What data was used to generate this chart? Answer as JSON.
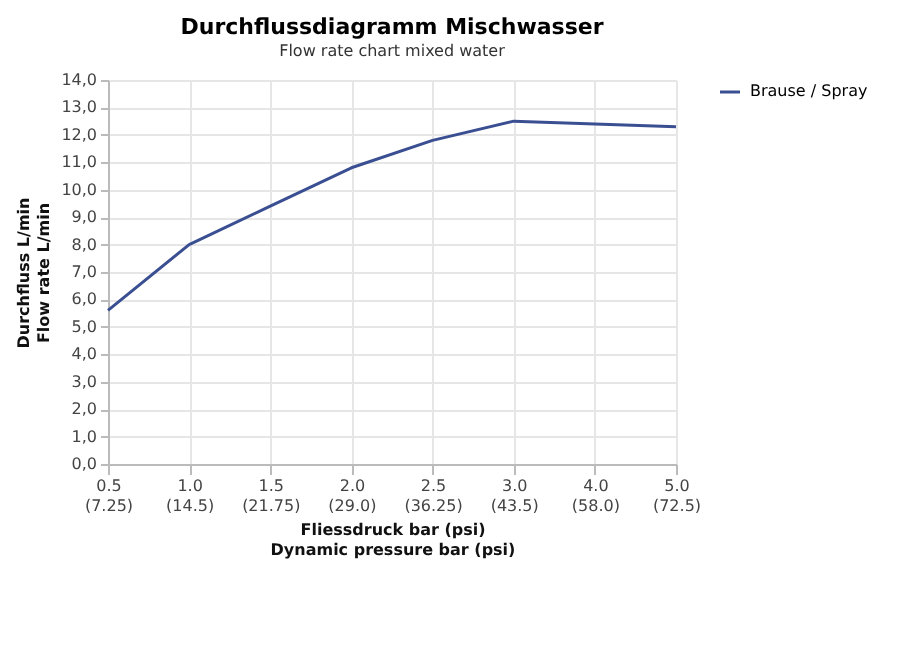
{
  "chart_data": {
    "type": "line",
    "title": "Durchflussdiagramm Mischwasser",
    "subtitle": "Flow rate chart mixed water",
    "xlabel": "Fliessdruck bar (psi)\nDynamic pressure bar (psi)",
    "ylabel": "Durchfluss L/min\nFlow rate L/min",
    "categories": [
      "0.5\n(7.25)",
      "1.0\n(14.5)",
      "1.5\n(21.75)",
      "2.0\n(29.0)",
      "2.5\n(36.25)",
      "3.0\n(43.5)",
      "4.0\n(58.0)",
      "5.0\n(72.5)"
    ],
    "series": [
      {
        "name": "Brause / Spray",
        "color": "#3a4e92",
        "values": [
          5.6,
          8.0,
          9.4,
          10.8,
          11.8,
          12.5,
          12.4,
          12.3
        ]
      }
    ],
    "ylim": [
      0,
      14
    ],
    "yticks": [
      {
        "value": 0,
        "label": "0,0"
      },
      {
        "value": 1,
        "label": "1,0"
      },
      {
        "value": 2,
        "label": "2,0"
      },
      {
        "value": 3,
        "label": "3,0"
      },
      {
        "value": 4,
        "label": "4,0"
      },
      {
        "value": 5,
        "label": "5,0"
      },
      {
        "value": 6,
        "label": "6,0"
      },
      {
        "value": 7,
        "label": "7,0"
      },
      {
        "value": 8,
        "label": "8,0"
      },
      {
        "value": 9,
        "label": "9,0"
      },
      {
        "value": 10,
        "label": "10,0"
      },
      {
        "value": 11,
        "label": "11,0"
      },
      {
        "value": 12,
        "label": "12,0"
      },
      {
        "value": 13,
        "label": "13,0"
      },
      {
        "value": 14,
        "label": "14,0"
      }
    ],
    "grid": true,
    "legend": "right",
    "marker": "none",
    "line_style": "solid"
  }
}
